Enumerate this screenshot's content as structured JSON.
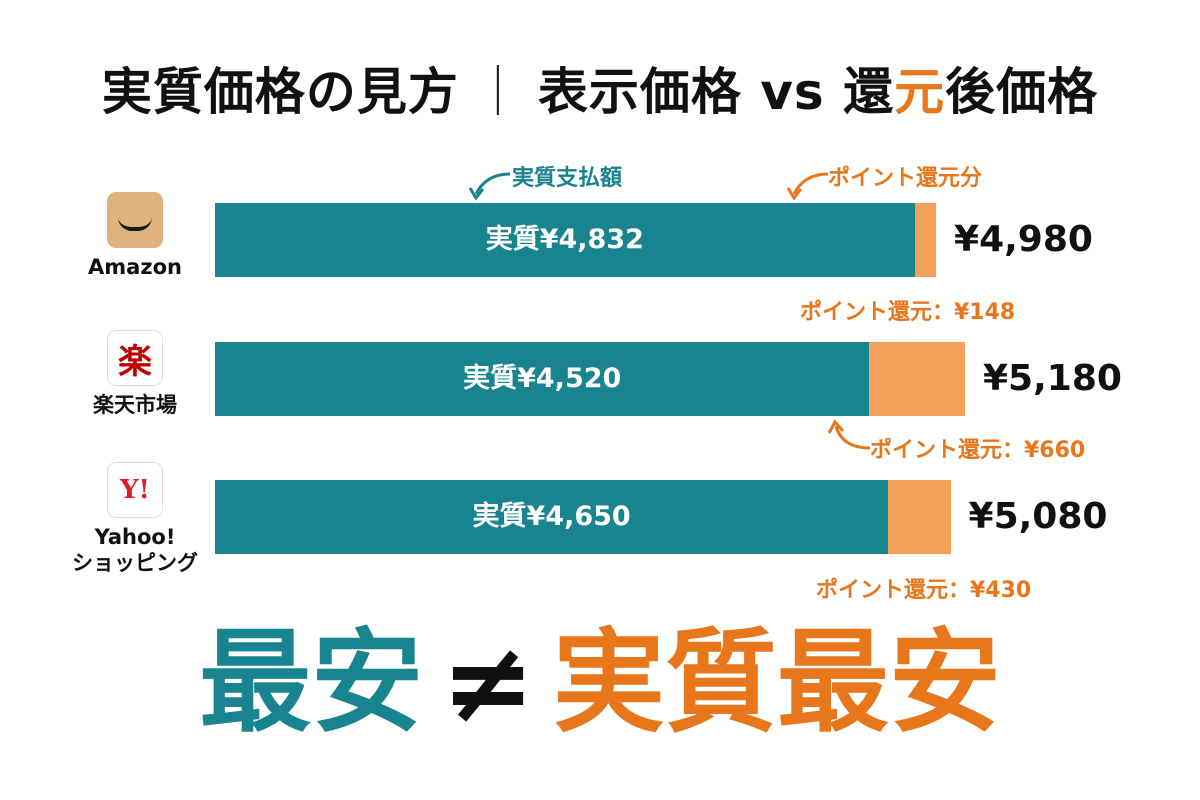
{
  "title": {
    "part1": "実質価格の見方",
    "separator": "｜",
    "part2": "表示価格 vs 還",
    "highlight": "元",
    "part3": "後価格"
  },
  "legend": {
    "actual": "実質支払額",
    "points": "ポイント還元分"
  },
  "colors": {
    "actual": "#17848f",
    "points": "#f4a15a",
    "accent": "#e8761a"
  },
  "chart_data": {
    "type": "bar",
    "orientation": "horizontal",
    "stacked": true,
    "categories": [
      "Amazon",
      "楽天市場",
      "Yahoo!\nショッピング"
    ],
    "series": [
      {
        "name": "実質支払額",
        "values": [
          4832,
          4520,
          4650
        ]
      },
      {
        "name": "ポイント還元分",
        "values": [
          148,
          660,
          430
        ]
      }
    ],
    "totals": [
      4980,
      5180,
      5080
    ],
    "bar_labels": [
      "実質¥4,832",
      "実質¥4,520",
      "実質¥4,650"
    ],
    "total_labels": [
      "¥4,980",
      "¥5,180",
      "¥5,080"
    ],
    "point_labels": [
      "ポイント還元：¥148",
      "ポイント還元：¥660",
      "ポイント還元：¥430"
    ]
  },
  "stores": [
    {
      "name": "Amazon",
      "icon": "amazon-logo-icon"
    },
    {
      "name": "楽天市場",
      "icon": "rakuten-logo-icon",
      "logo_text": "楽"
    },
    {
      "name": "Yahoo!\nショッピング",
      "icon": "yahoo-logo-icon",
      "logo_text": "Y!"
    }
  ],
  "footer": {
    "left": "最安",
    "neq": "≠",
    "right": "実質最安"
  }
}
